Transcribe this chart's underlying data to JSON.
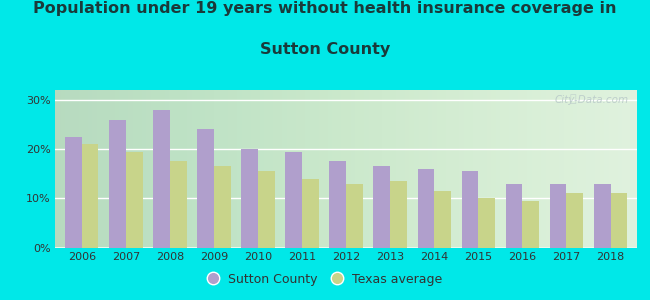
{
  "title_line1": "Population under 19 years without health insurance coverage in",
  "title_line2": "Sutton County",
  "years": [
    2006,
    2007,
    2008,
    2009,
    2010,
    2011,
    2012,
    2013,
    2014,
    2015,
    2016,
    2017,
    2018
  ],
  "sutton": [
    22.5,
    26.0,
    28.0,
    24.0,
    20.0,
    19.5,
    17.5,
    16.5,
    16.0,
    15.5,
    13.0,
    13.0,
    13.0
  ],
  "texas": [
    21.0,
    19.5,
    17.5,
    16.5,
    15.5,
    14.0,
    13.0,
    13.5,
    11.5,
    10.0,
    9.5,
    11.0,
    11.0
  ],
  "sutton_color": "#b09fcc",
  "texas_color": "#c8d48a",
  "bg_outer": "#00e8e8",
  "ylim": [
    0,
    32
  ],
  "yticks": [
    0,
    10,
    20,
    30
  ],
  "title_fontsize": 11.5,
  "title_color": "#1a3a3a",
  "tick_fontsize": 8,
  "legend_labels": [
    "Sutton County",
    "Texas average"
  ],
  "watermark": "City-Data.com"
}
